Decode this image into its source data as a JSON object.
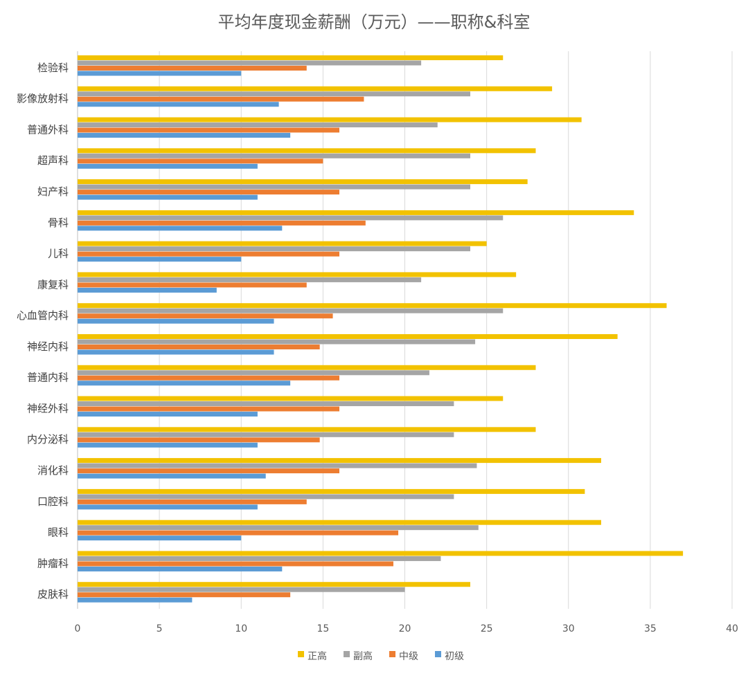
{
  "chart_data": {
    "type": "bar",
    "orientation": "horizontal",
    "title": "平均年度现金薪酬（万元）——职称&科室",
    "xlabel": "",
    "ylabel": "",
    "xlim": [
      0,
      40
    ],
    "x_ticks": [
      0,
      5,
      10,
      15,
      20,
      25,
      30,
      35,
      40
    ],
    "grid": true,
    "legend_position": "bottom",
    "categories": [
      "检验科",
      "影像放射科",
      "普通外科",
      "超声科",
      "妇产科",
      "骨科",
      "儿科",
      "康复科",
      "心血管内科",
      "神经内科",
      "普通内科",
      "神经外科",
      "内分泌科",
      "消化科",
      "口腔科",
      "眼科",
      "肿瘤科",
      "皮肤科"
    ],
    "series": [
      {
        "name": "正高",
        "color": "#f2c200",
        "values": [
          26,
          29,
          30.8,
          28,
          27.5,
          34,
          25,
          26.8,
          36,
          33,
          28,
          26,
          28,
          32,
          31,
          32,
          37,
          24
        ]
      },
      {
        "name": "副高",
        "color": "#a5a5a5",
        "values": [
          21,
          24,
          22,
          24,
          24,
          26,
          24,
          21,
          26,
          24.3,
          21.5,
          23,
          23,
          24.4,
          23,
          24.5,
          22.2,
          20
        ]
      },
      {
        "name": "中级",
        "color": "#ed7d31",
        "values": [
          14,
          17.5,
          16,
          15,
          16,
          17.6,
          16,
          14,
          15.6,
          14.8,
          16,
          16,
          14.8,
          16,
          14,
          19.6,
          19.3,
          13
        ]
      },
      {
        "name": "初级",
        "color": "#5b9bd5",
        "values": [
          10,
          12.3,
          13,
          11,
          11,
          12.5,
          10,
          8.5,
          12,
          12,
          13,
          11,
          11,
          11.5,
          11,
          10,
          12.5,
          7
        ]
      }
    ]
  }
}
